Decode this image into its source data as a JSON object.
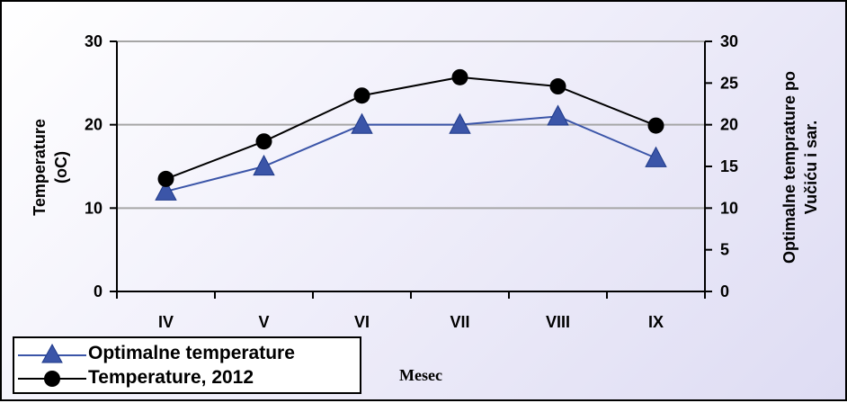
{
  "chart_data": {
    "type": "line",
    "categories": [
      "IV",
      "V",
      "VI",
      "VII",
      "VIII",
      "IX"
    ],
    "series": [
      {
        "name": "Optimalne temperature",
        "values": [
          12,
          15,
          20,
          20,
          21,
          16
        ],
        "color": "#3b55a8",
        "marker": "triangle",
        "axis": "right"
      },
      {
        "name": "Temperature, 2012",
        "values": [
          13.5,
          18,
          23.5,
          25.7,
          24.6,
          19.9
        ],
        "color": "#000000",
        "marker": "circle",
        "axis": "left"
      }
    ],
    "xlabel": "Mesec",
    "ylabel_left": "Temperature (oC)",
    "ylabel_left_lines": [
      "Temperature",
      "(oC)"
    ],
    "ylabel_right": "Optimalne temprature po Vučiću i sar.",
    "ylabel_right_lines": [
      "Optimalne temprature po",
      "Vučiću i sar."
    ],
    "ylim_left": [
      0,
      30
    ],
    "yticks_left": [
      0,
      10,
      20,
      30
    ],
    "ylim_right": [
      0,
      30
    ],
    "yticks_right": [
      0,
      5,
      10,
      15,
      20,
      25,
      30
    ],
    "grid": true,
    "legend_position": "bottom-left"
  }
}
